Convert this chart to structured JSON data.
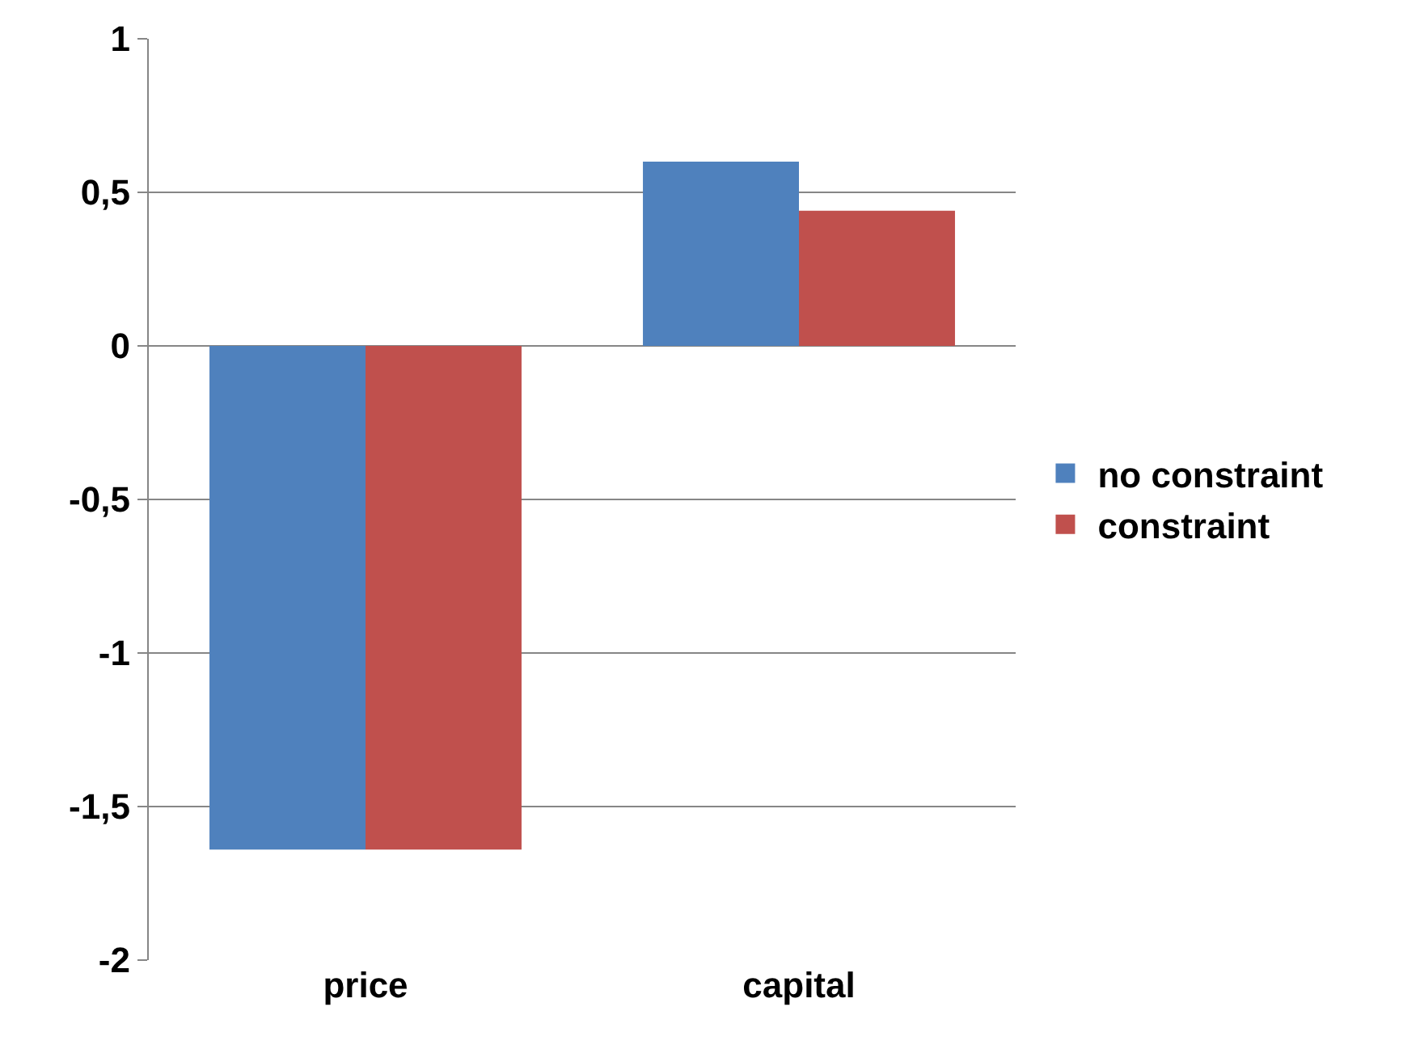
{
  "chart_data": {
    "type": "bar",
    "categories": [
      "price",
      "capital"
    ],
    "series": [
      {
        "name": "no constraint",
        "color": "#4f81bd",
        "values": [
          -1.64,
          0.6
        ]
      },
      {
        "name": "constraint",
        "color": "#c0504d",
        "values": [
          -1.64,
          0.44
        ]
      }
    ],
    "ylim": [
      -2,
      1
    ],
    "yticks": [
      {
        "value": -2,
        "label": "-2"
      },
      {
        "value": -1.5,
        "label": "-1,5"
      },
      {
        "value": -1,
        "label": "-1"
      },
      {
        "value": -0.5,
        "label": "-0,5"
      },
      {
        "value": 0,
        "label": "0"
      },
      {
        "value": 0.5,
        "label": "0,5"
      },
      {
        "value": 1,
        "label": "1"
      }
    ],
    "grid": "y",
    "legend": "right"
  }
}
